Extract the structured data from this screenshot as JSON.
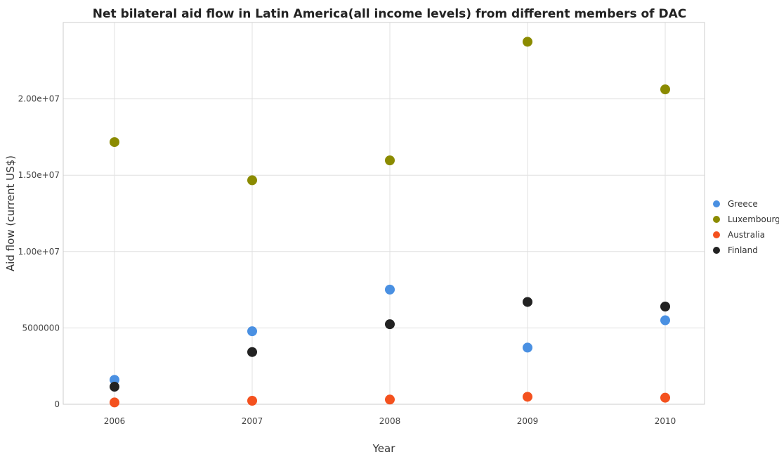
{
  "chart_data": {
    "type": "scatter",
    "title": "Net bilateral aid flow in Latin America(all income levels) from different members of DAC",
    "xlabel": "Year",
    "ylabel": "Aid flow (current US$)",
    "categories": [
      "2006",
      "2007",
      "2008",
      "2009",
      "2010"
    ],
    "ylim": [
      0,
      25000000
    ],
    "yticks": [
      0,
      5000000,
      10000000,
      15000000,
      20000000
    ],
    "ytick_labels": [
      "0",
      "5000000",
      "1.00e+07",
      "1.50e+07",
      "2.00e+07"
    ],
    "grid": true,
    "legend_position": "right",
    "series": [
      {
        "name": "Greece",
        "color": "#4a90e2",
        "values": [
          1600000,
          4780000,
          7510000,
          3710000,
          5500000
        ]
      },
      {
        "name": "Luxembourg",
        "color": "#8b8b00",
        "values": [
          17170000,
          14670000,
          15970000,
          23740000,
          20620000
        ]
      },
      {
        "name": "Australia",
        "color": "#f4511e",
        "values": [
          120000,
          230000,
          310000,
          490000,
          430000
        ]
      },
      {
        "name": "Finland",
        "color": "#222222",
        "values": [
          1150000,
          3420000,
          5240000,
          6700000,
          6400000
        ]
      }
    ]
  }
}
